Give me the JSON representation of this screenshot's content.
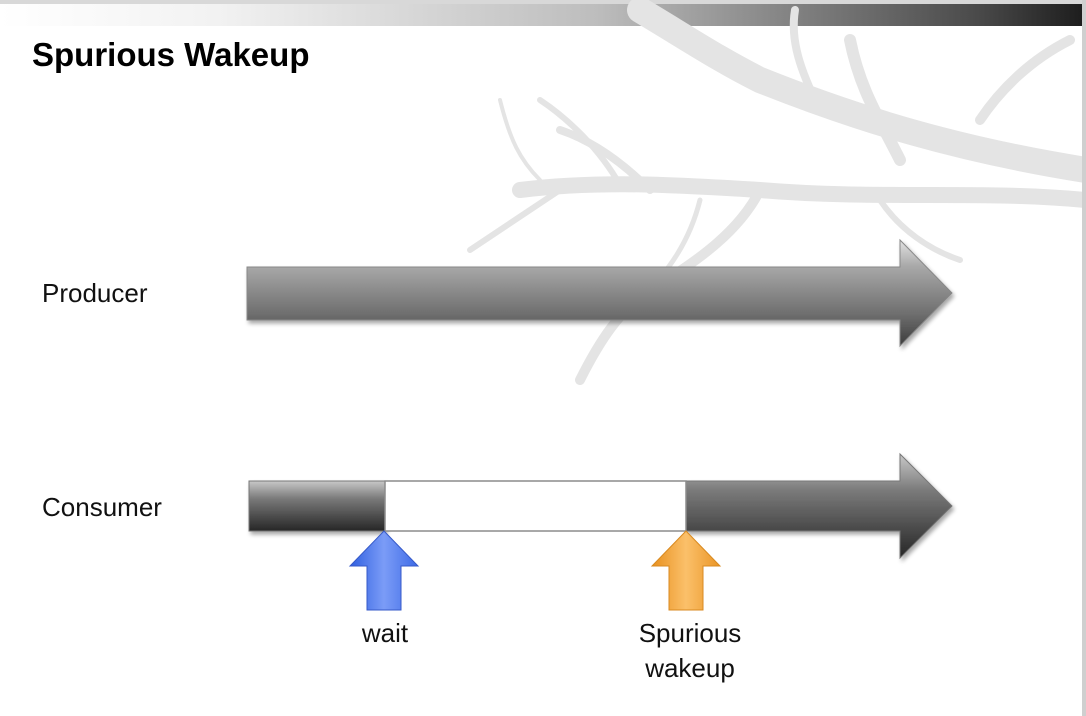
{
  "slide": {
    "title": "Spurious Wakeup"
  },
  "rows": {
    "producer_label": "Producer",
    "consumer_label": "Consumer"
  },
  "markers": {
    "wait_label": "wait",
    "spurious_line1": "Spurious",
    "spurious_line2": "wakeup"
  },
  "colors": {
    "wait_arrow": "#5b82f0",
    "spurious_arrow": "#f5a640",
    "timeline_dark": "#3a3a3a",
    "timeline_light": "#9a9a9a",
    "idle_segment": "#ffffff"
  }
}
